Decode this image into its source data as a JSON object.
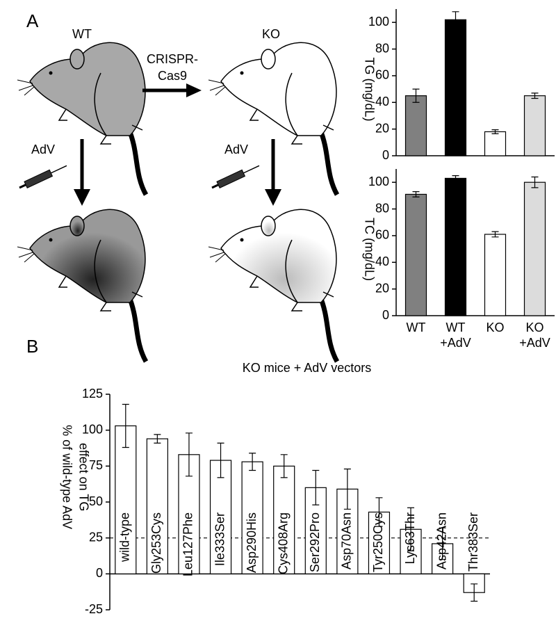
{
  "panel_labels": [
    "A",
    "B"
  ],
  "diagram": {
    "wt": "WT",
    "ko": "KO",
    "crispr": [
      "CRISPR-",
      "Cas9"
    ],
    "adv_left": "AdV",
    "adv_right": "AdV"
  },
  "chart_data": [
    {
      "type": "bar",
      "ylabel": "TG (mg/dL)",
      "values": [
        45,
        102,
        18,
        45
      ],
      "errors": [
        5,
        6,
        1.5,
        2
      ],
      "colors": [
        "#808080",
        "#000000",
        "#ffffff",
        "#dcdcdc"
      ],
      "ylim": [
        0,
        110
      ],
      "yticks": [
        0,
        20,
        40,
        60,
        80,
        100
      ]
    },
    {
      "type": "bar",
      "ylabel": "TC (mg/dL)",
      "categories": [
        "WT",
        "WT\n+AdV",
        "KO",
        "KO\n+AdV"
      ],
      "values": [
        91,
        103,
        61,
        100
      ],
      "errors": [
        2,
        2,
        2,
        4
      ],
      "colors": [
        "#808080",
        "#000000",
        "#ffffff",
        "#dcdcdc"
      ],
      "ylim": [
        0,
        110
      ],
      "yticks": [
        0,
        20,
        40,
        60,
        80,
        100
      ]
    },
    {
      "type": "bar",
      "title": "KO mice + AdV vectors",
      "ylabel": [
        "% of wild-type AdV",
        "effect on TG"
      ],
      "categories": [
        "wild-type",
        "Gly253Cys",
        "Leu127Phe",
        "Ile333Ser",
        "Asp290His",
        "Cys408Arg",
        "Ser292Pro",
        "Asp70Asn",
        "Tyr250Cys",
        "Lys63Thr",
        "Asp42Asn",
        "Thr383Ser"
      ],
      "values": [
        103,
        94,
        83,
        79,
        78,
        75,
        60,
        59,
        43,
        31,
        21,
        -13
      ],
      "errors": [
        15,
        3,
        15,
        12,
        6,
        8,
        12,
        14,
        10,
        15,
        11,
        6
      ],
      "color": "#ffffff",
      "reference_line": 25,
      "ylim": [
        -25,
        125
      ],
      "yticks": [
        -25,
        0,
        25,
        50,
        75,
        100,
        125
      ]
    }
  ]
}
